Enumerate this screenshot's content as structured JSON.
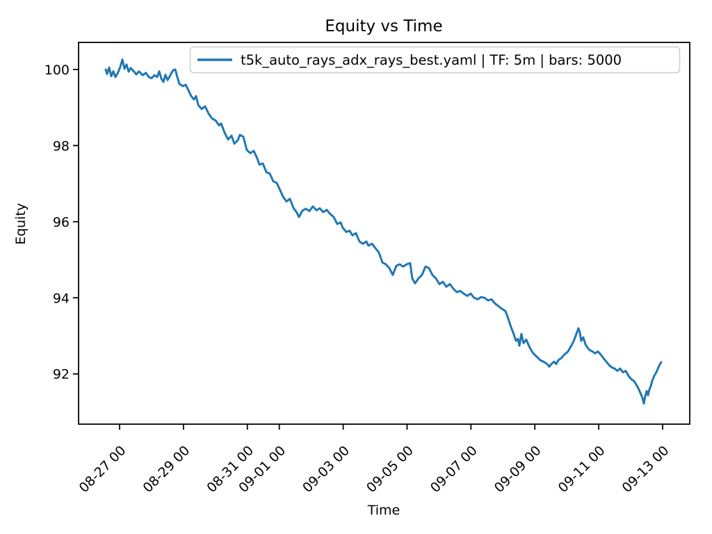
{
  "figure": {
    "title": "Equity vs Time",
    "xlabel": "Time",
    "ylabel": "Equity",
    "background": "#ffffff"
  },
  "legend": {
    "label": "t5k_auto_rays_adx_rays_best.yaml | TF: 5m | bars: 5000",
    "line_color": "#1f77b4",
    "position": "upper center"
  },
  "chart_data": {
    "type": "line",
    "title": "Equity vs Time",
    "xlabel": "Time",
    "ylabel": "Equity",
    "grid": false,
    "x_unit": "days since 08-27 00:00",
    "xlim": [
      -1.284,
      17.85
    ],
    "ylim": [
      90.68,
      100.71
    ],
    "y_ticks": [
      100,
      98,
      96,
      94,
      92
    ],
    "x_ticks": [
      {
        "t": 0,
        "label": "08-27 00"
      },
      {
        "t": 2,
        "label": "08-29 00"
      },
      {
        "t": 4,
        "label": "08-31 00"
      },
      {
        "t": 5,
        "label": "09-01 00"
      },
      {
        "t": 7,
        "label": "09-03 00"
      },
      {
        "t": 9,
        "label": "09-05 00"
      },
      {
        "t": 11,
        "label": "09-07 00"
      },
      {
        "t": 13,
        "label": "09-09 00"
      },
      {
        "t": 15,
        "label": "09-11 00"
      },
      {
        "t": 17,
        "label": "09-13 00"
      }
    ],
    "series": [
      {
        "name": "t5k_auto_rays_adx_rays_best.yaml | TF: 5m | bars: 5000",
        "color": "#1f77b4",
        "points": [
          [
            -0.435,
            100.0
          ],
          [
            -0.392,
            99.88
          ],
          [
            -0.327,
            100.05
          ],
          [
            -0.261,
            99.82
          ],
          [
            -0.196,
            99.95
          ],
          [
            -0.131,
            99.8
          ],
          [
            -0.044,
            99.93
          ],
          [
            0.022,
            100.07
          ],
          [
            0.087,
            100.26
          ],
          [
            0.152,
            100.02
          ],
          [
            0.218,
            100.13
          ],
          [
            0.283,
            99.94
          ],
          [
            0.348,
            100.04
          ],
          [
            0.435,
            99.96
          ],
          [
            0.522,
            99.87
          ],
          [
            0.609,
            99.95
          ],
          [
            0.718,
            99.85
          ],
          [
            0.827,
            99.91
          ],
          [
            0.914,
            99.8
          ],
          [
            1.001,
            99.77
          ],
          [
            1.088,
            99.85
          ],
          [
            1.175,
            99.8
          ],
          [
            1.241,
            99.95
          ],
          [
            1.306,
            99.76
          ],
          [
            1.371,
            99.67
          ],
          [
            1.437,
            99.86
          ],
          [
            1.502,
            99.72
          ],
          [
            1.589,
            99.85
          ],
          [
            1.676,
            99.98
          ],
          [
            1.741,
            100.0
          ],
          [
            1.807,
            99.8
          ],
          [
            1.872,
            99.62
          ],
          [
            1.981,
            99.56
          ],
          [
            2.068,
            99.6
          ],
          [
            2.133,
            99.49
          ],
          [
            2.242,
            99.3
          ],
          [
            2.329,
            99.21
          ],
          [
            2.394,
            99.3
          ],
          [
            2.46,
            99.07
          ],
          [
            2.569,
            98.96
          ],
          [
            2.677,
            99.03
          ],
          [
            2.786,
            98.84
          ],
          [
            2.895,
            98.71
          ],
          [
            3.004,
            98.66
          ],
          [
            3.113,
            98.53
          ],
          [
            3.178,
            98.58
          ],
          [
            3.287,
            98.34
          ],
          [
            3.396,
            98.16
          ],
          [
            3.505,
            98.26
          ],
          [
            3.592,
            98.05
          ],
          [
            3.7,
            98.14
          ],
          [
            3.766,
            98.28
          ],
          [
            3.874,
            98.23
          ],
          [
            3.983,
            97.88
          ],
          [
            4.092,
            97.8
          ],
          [
            4.201,
            97.86
          ],
          [
            4.31,
            97.66
          ],
          [
            4.375,
            97.5
          ],
          [
            4.484,
            97.53
          ],
          [
            4.593,
            97.3
          ],
          [
            4.702,
            97.26
          ],
          [
            4.81,
            97.06
          ],
          [
            4.919,
            97.02
          ],
          [
            5.028,
            96.82
          ],
          [
            5.115,
            96.66
          ],
          [
            5.224,
            96.53
          ],
          [
            5.333,
            96.6
          ],
          [
            5.442,
            96.36
          ],
          [
            5.55,
            96.24
          ],
          [
            5.616,
            96.12
          ],
          [
            5.724,
            96.29
          ],
          [
            5.833,
            96.34
          ],
          [
            5.942,
            96.28
          ],
          [
            6.051,
            96.4
          ],
          [
            6.16,
            96.3
          ],
          [
            6.269,
            96.35
          ],
          [
            6.377,
            96.25
          ],
          [
            6.486,
            96.31
          ],
          [
            6.595,
            96.2
          ],
          [
            6.704,
            96.12
          ],
          [
            6.813,
            95.94
          ],
          [
            6.921,
            95.98
          ],
          [
            6.987,
            95.84
          ],
          [
            7.095,
            95.73
          ],
          [
            7.204,
            95.76
          ],
          [
            7.291,
            95.64
          ],
          [
            7.4,
            95.7
          ],
          [
            7.509,
            95.48
          ],
          [
            7.618,
            95.42
          ],
          [
            7.726,
            95.48
          ],
          [
            7.792,
            95.37
          ],
          [
            7.901,
            95.42
          ],
          [
            8.01,
            95.3
          ],
          [
            8.118,
            95.19
          ],
          [
            8.227,
            94.93
          ],
          [
            8.336,
            94.88
          ],
          [
            8.445,
            94.78
          ],
          [
            8.554,
            94.6
          ],
          [
            8.663,
            94.84
          ],
          [
            8.771,
            94.88
          ],
          [
            8.88,
            94.82
          ],
          [
            8.989,
            94.88
          ],
          [
            9.098,
            94.91
          ],
          [
            9.163,
            94.51
          ],
          [
            9.25,
            94.38
          ],
          [
            9.359,
            94.51
          ],
          [
            9.468,
            94.6
          ],
          [
            9.577,
            94.82
          ],
          [
            9.686,
            94.78
          ],
          [
            9.794,
            94.6
          ],
          [
            9.903,
            94.51
          ],
          [
            10.012,
            94.36
          ],
          [
            10.121,
            94.42
          ],
          [
            10.23,
            94.29
          ],
          [
            10.339,
            94.36
          ],
          [
            10.447,
            94.24
          ],
          [
            10.556,
            94.15
          ],
          [
            10.665,
            94.18
          ],
          [
            10.774,
            94.11
          ],
          [
            10.883,
            94.05
          ],
          [
            10.992,
            94.11
          ],
          [
            11.1,
            94.0
          ],
          [
            11.209,
            93.96
          ],
          [
            11.318,
            94.02
          ],
          [
            11.427,
            94.0
          ],
          [
            11.536,
            93.93
          ],
          [
            11.645,
            93.96
          ],
          [
            11.753,
            93.85
          ],
          [
            11.862,
            93.78
          ],
          [
            11.971,
            93.71
          ],
          [
            12.08,
            93.65
          ],
          [
            12.145,
            93.51
          ],
          [
            12.254,
            93.23
          ],
          [
            12.32,
            93.09
          ],
          [
            12.407,
            92.87
          ],
          [
            12.472,
            92.92
          ],
          [
            12.516,
            92.74
          ],
          [
            12.581,
            93.05
          ],
          [
            12.646,
            92.81
          ],
          [
            12.733,
            92.9
          ],
          [
            12.842,
            92.69
          ],
          [
            12.951,
            92.54
          ],
          [
            13.06,
            92.45
          ],
          [
            13.169,
            92.36
          ],
          [
            13.277,
            92.32
          ],
          [
            13.386,
            92.26
          ],
          [
            13.452,
            92.19
          ],
          [
            13.517,
            92.26
          ],
          [
            13.604,
            92.32
          ],
          [
            13.669,
            92.26
          ],
          [
            13.735,
            92.36
          ],
          [
            13.822,
            92.41
          ],
          [
            13.93,
            92.51
          ],
          [
            14.039,
            92.59
          ],
          [
            14.105,
            92.69
          ],
          [
            14.17,
            92.78
          ],
          [
            14.235,
            92.9
          ],
          [
            14.3,
            93.05
          ],
          [
            14.366,
            93.2
          ],
          [
            14.409,
            93.09
          ],
          [
            14.453,
            92.87
          ],
          [
            14.518,
            92.96
          ],
          [
            14.583,
            92.78
          ],
          [
            14.649,
            92.69
          ],
          [
            14.714,
            92.63
          ],
          [
            14.801,
            92.59
          ],
          [
            14.888,
            92.54
          ],
          [
            14.975,
            92.59
          ],
          [
            15.062,
            92.51
          ],
          [
            15.149,
            92.41
          ],
          [
            15.237,
            92.32
          ],
          [
            15.324,
            92.23
          ],
          [
            15.411,
            92.17
          ],
          [
            15.498,
            92.14
          ],
          [
            15.585,
            92.08
          ],
          [
            15.672,
            92.14
          ],
          [
            15.759,
            92.04
          ],
          [
            15.846,
            92.08
          ],
          [
            15.933,
            91.95
          ],
          [
            16.02,
            91.86
          ],
          [
            16.108,
            91.81
          ],
          [
            16.173,
            91.72
          ],
          [
            16.238,
            91.63
          ],
          [
            16.304,
            91.5
          ],
          [
            16.369,
            91.37
          ],
          [
            16.412,
            91.22
          ],
          [
            16.456,
            91.41
          ],
          [
            16.499,
            91.55
          ],
          [
            16.543,
            91.44
          ],
          [
            16.586,
            91.59
          ],
          [
            16.63,
            91.68
          ],
          [
            16.673,
            91.81
          ],
          [
            16.738,
            91.95
          ],
          [
            16.804,
            92.04
          ],
          [
            16.869,
            92.17
          ],
          [
            16.912,
            92.25
          ],
          [
            16.956,
            92.31
          ]
        ]
      }
    ],
    "legend_entries": [
      "t5k_auto_rays_adx_rays_best.yaml | TF: 5m | bars: 5000"
    ]
  }
}
